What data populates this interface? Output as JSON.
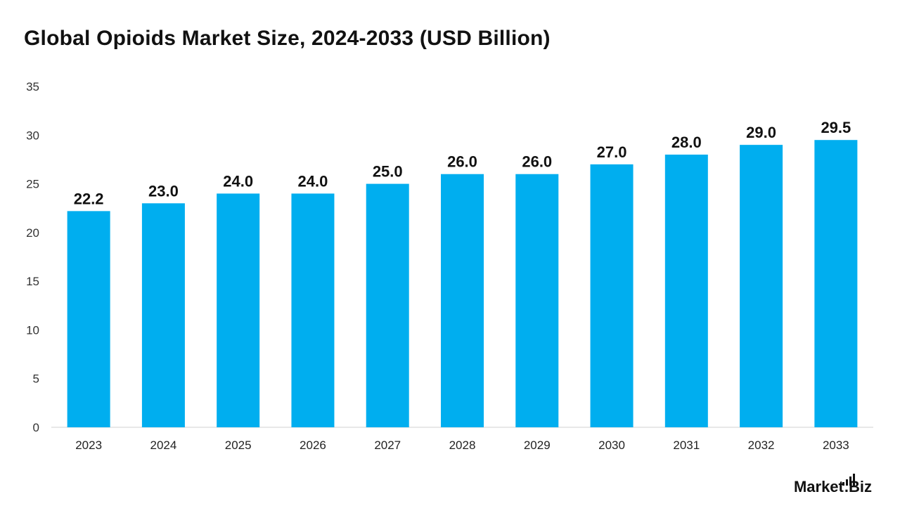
{
  "chart_data": {
    "type": "bar",
    "title": "Global Opioids Market Size, 2024-2033 (USD Billion)",
    "categories": [
      "2023",
      "2024",
      "2025",
      "2026",
      "2027",
      "2028",
      "2029",
      "2030",
      "2031",
      "2032",
      "2033"
    ],
    "values": [
      22.2,
      23.0,
      24.0,
      24.0,
      25.0,
      26.0,
      26.0,
      27.0,
      28.0,
      29.0,
      29.5
    ],
    "data_labels": [
      "22.2",
      "23.0",
      "24.0",
      "24.0",
      "25.0",
      "26.0",
      "26.0",
      "27.0",
      "28.0",
      "29.0",
      "29.5"
    ],
    "y_ticks": [
      "0",
      "5",
      "10",
      "15",
      "20",
      "25",
      "30",
      "35"
    ],
    "ylim": [
      0,
      35
    ],
    "xlabel": "",
    "ylabel": "",
    "grid": false,
    "legend": "none",
    "bar_color": "#00AEEF",
    "axis_color": "#D0D0D0"
  },
  "logo": {
    "text_main": "Market",
    "text_suffix": ".Biz"
  }
}
